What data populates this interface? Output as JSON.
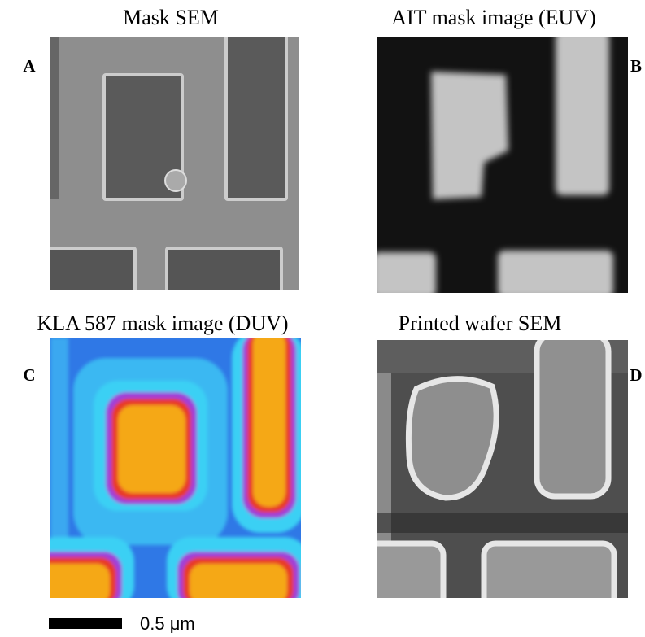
{
  "panels": [
    {
      "letter": "A",
      "title": "Mask SEM"
    },
    {
      "letter": "B",
      "title": "AIT mask image (EUV)"
    },
    {
      "letter": "C",
      "title": "KLA 587 mask image (DUV)"
    },
    {
      "letter": "D",
      "title": "Printed wafer SEM"
    }
  ],
  "scale_bar": {
    "label": "0.5 μm"
  }
}
